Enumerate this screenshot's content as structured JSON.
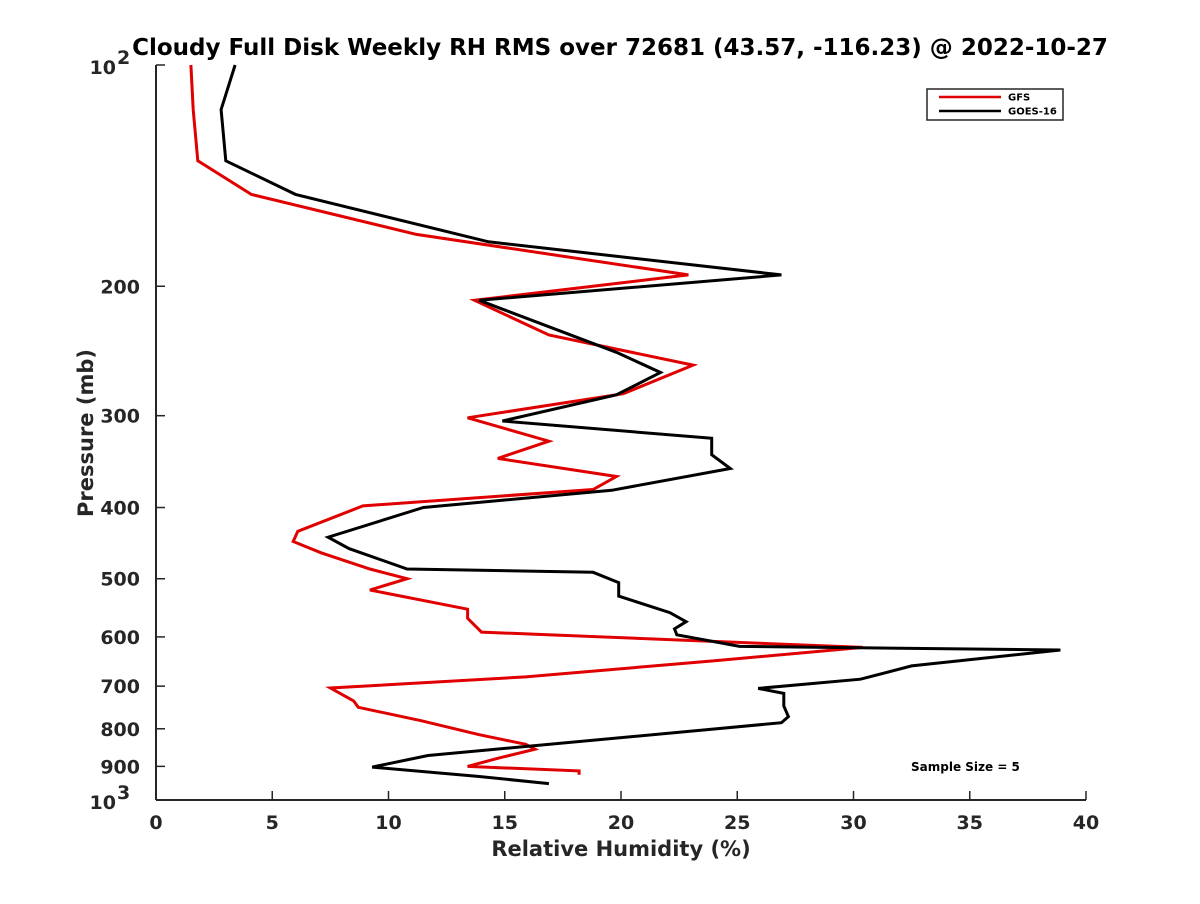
{
  "chart_data": {
    "type": "line",
    "title": "Cloudy Full Disk Weekly RH RMS over 72681 (43.57, -116.23) @ 2022-10-27",
    "xlabel": "Relative Humidity (%)",
    "ylabel": "Pressure (mb)",
    "xlim": [
      0,
      40
    ],
    "ylim": [
      100,
      1000
    ],
    "y_scale": "log",
    "y_reversed": true,
    "grid": false,
    "legend_position": "top-right",
    "x_ticks": [
      "0",
      "5",
      "10",
      "15",
      "20",
      "25",
      "30",
      "35",
      "40"
    ],
    "y_ticks": [
      {
        "value": 100,
        "base": "10",
        "exp": "2"
      },
      {
        "value": 200,
        "label": "200"
      },
      {
        "value": 300,
        "label": "300"
      },
      {
        "value": 400,
        "label": "400"
      },
      {
        "value": 500,
        "label": "500"
      },
      {
        "value": 600,
        "label": "600"
      },
      {
        "value": 700,
        "label": "700"
      },
      {
        "value": 800,
        "label": "800"
      },
      {
        "value": 900,
        "label": "900"
      },
      {
        "value": 1000,
        "base": "10",
        "exp": "3"
      }
    ],
    "annotation": "Sample Size = 5",
    "series": [
      {
        "name": "GFS",
        "color": "#e00000",
        "points": [
          [
            1.5,
            100
          ],
          [
            1.6,
            115
          ],
          [
            1.8,
            135
          ],
          [
            4.1,
            150
          ],
          [
            11.2,
            170
          ],
          [
            22.9,
            193
          ],
          [
            13.7,
            209
          ],
          [
            16.9,
            233
          ],
          [
            23.1,
            256
          ],
          [
            20.1,
            280
          ],
          [
            13.4,
            302
          ],
          [
            16.9,
            325
          ],
          [
            14.7,
            343
          ],
          [
            19.8,
            363
          ],
          [
            18.8,
            378
          ],
          [
            8.9,
            398
          ],
          [
            6.1,
            431
          ],
          [
            5.9,
            445
          ],
          [
            7.1,
            461
          ],
          [
            9.2,
            485
          ],
          [
            10.8,
            500
          ],
          [
            9.2,
            518
          ],
          [
            13.4,
            550
          ],
          [
            13.4,
            566
          ],
          [
            14.0,
            591
          ],
          [
            30.4,
            620
          ],
          [
            23.9,
            647
          ],
          [
            15.9,
            680
          ],
          [
            7.5,
            704
          ],
          [
            8.5,
            733
          ],
          [
            8.7,
            748
          ],
          [
            11.4,
            780
          ],
          [
            13.9,
            815
          ],
          [
            15.9,
            840
          ],
          [
            16.3,
            853
          ],
          [
            14.8,
            876
          ],
          [
            13.4,
            900
          ],
          [
            18.2,
            913
          ],
          [
            18.2,
            924
          ]
        ]
      },
      {
        "name": "GOES-16",
        "color": "#000000",
        "points": [
          [
            3.4,
            100
          ],
          [
            2.8,
            115
          ],
          [
            3.0,
            135
          ],
          [
            6.0,
            150
          ],
          [
            14.3,
            174
          ],
          [
            26.9,
            193
          ],
          [
            13.9,
            209
          ],
          [
            19.8,
            246
          ],
          [
            21.7,
            262
          ],
          [
            19.8,
            281
          ],
          [
            14.9,
            305
          ],
          [
            23.9,
            322
          ],
          [
            23.9,
            339
          ],
          [
            24.7,
            354
          ],
          [
            19.6,
            379
          ],
          [
            11.5,
            400
          ],
          [
            7.4,
            439
          ],
          [
            8.3,
            455
          ],
          [
            10.8,
            485
          ],
          [
            18.8,
            490
          ],
          [
            19.9,
            506
          ],
          [
            19.9,
            528
          ],
          [
            22.1,
            556
          ],
          [
            22.8,
            572
          ],
          [
            22.3,
            585
          ],
          [
            22.4,
            596
          ],
          [
            25.1,
            618
          ],
          [
            38.9,
            625
          ],
          [
            32.5,
            657
          ],
          [
            30.3,
            685
          ],
          [
            25.9,
            705
          ],
          [
            27.0,
            716
          ],
          [
            27.0,
            745
          ],
          [
            27.2,
            770
          ],
          [
            26.9,
            785
          ],
          [
            23.2,
            805
          ],
          [
            11.7,
            870
          ],
          [
            9.3,
            902
          ],
          [
            13.9,
            929
          ],
          [
            16.9,
            950
          ]
        ]
      }
    ]
  }
}
